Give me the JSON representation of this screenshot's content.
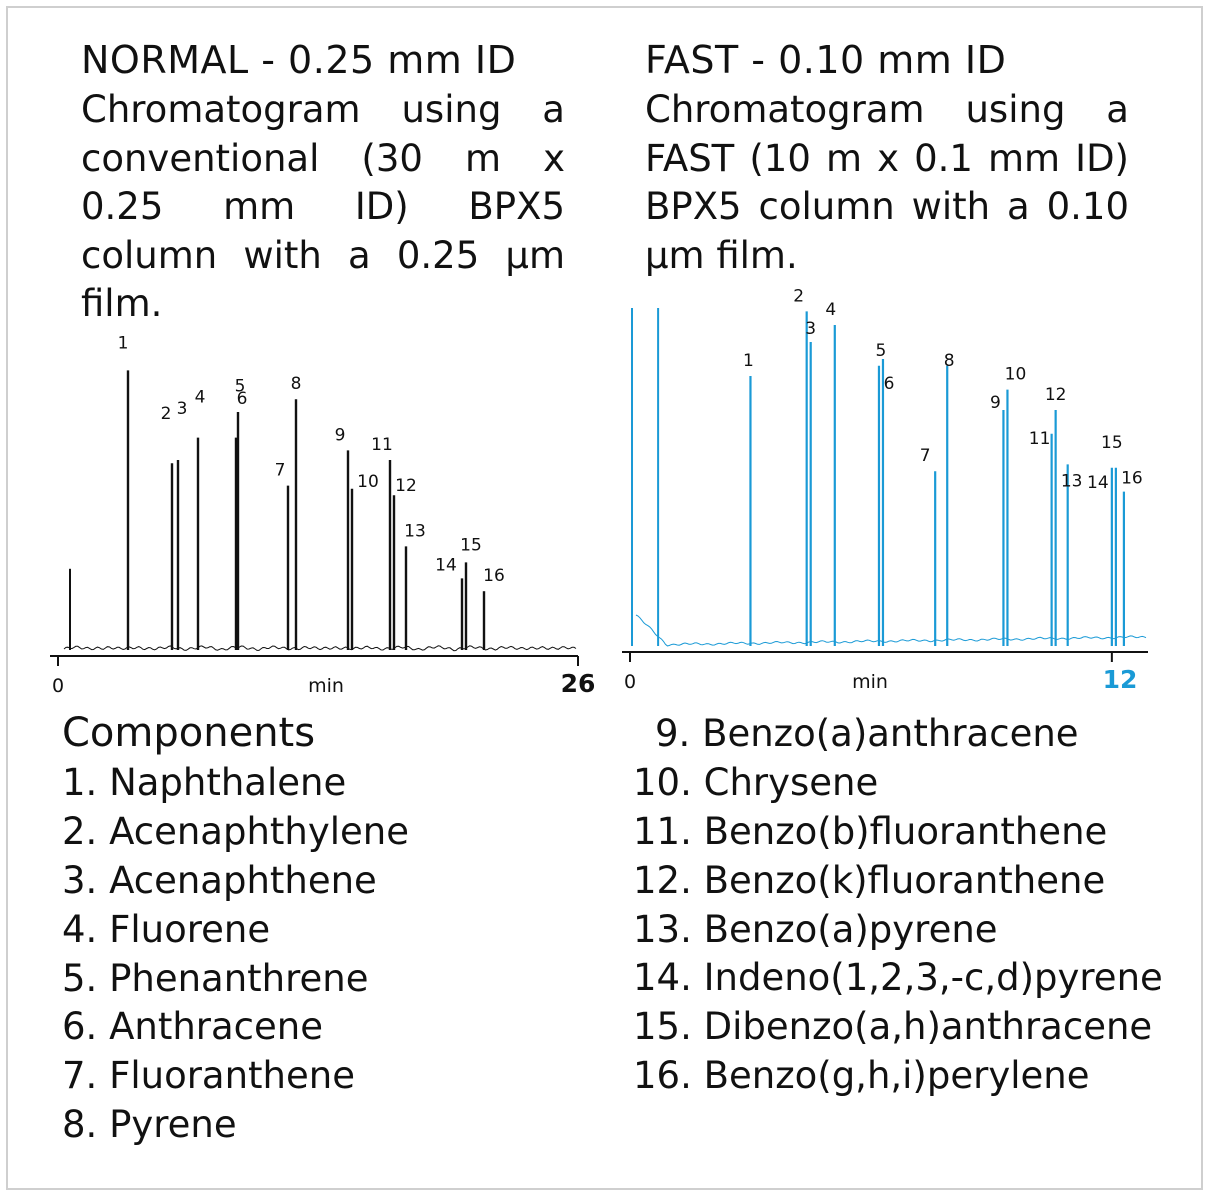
{
  "panels": {
    "normal": {
      "title": "NORMAL - 0.25 mm ID",
      "description": "Chromatogram using a conventional (30 m x 0.25 mm ID) BPX5 column with a 0.25 μm film."
    },
    "fast": {
      "title": "FAST - 0.10 mm ID",
      "description": "Chromatogram using a FAST (10 m x 0.1 mm ID) BPX5 column with a 0.10 μm film."
    }
  },
  "colors": {
    "normal_trace": "#111111",
    "fast_trace": "#1a9ad6",
    "fast_axis_end": "#1a9ad6"
  },
  "chart_data": [
    {
      "type": "line",
      "title": "NORMAL - 0.25 mm ID",
      "xlabel": "min",
      "ylabel": "",
      "xlim": [
        0,
        26
      ],
      "x_tick_labels": [
        "0",
        "26"
      ],
      "ylim": [
        0,
        100
      ],
      "grid": false,
      "peaks": [
        {
          "label": "1",
          "x": 3.5,
          "height": 88
        },
        {
          "label": "2",
          "x": 5.7,
          "height": 59
        },
        {
          "label": "3",
          "x": 6.0,
          "height": 60
        },
        {
          "label": "4",
          "x": 7.0,
          "height": 67
        },
        {
          "label": "5",
          "x": 8.9,
          "height": 67
        },
        {
          "label": "6",
          "x": 9.0,
          "height": 75
        },
        {
          "label": "7",
          "x": 11.5,
          "height": 52
        },
        {
          "label": "8",
          "x": 11.9,
          "height": 79
        },
        {
          "label": "9",
          "x": 14.5,
          "height": 63
        },
        {
          "label": "10",
          "x": 14.7,
          "height": 51
        },
        {
          "label": "11",
          "x": 16.6,
          "height": 60
        },
        {
          "label": "12",
          "x": 16.8,
          "height": 49
        },
        {
          "label": "13",
          "x": 17.4,
          "height": 33
        },
        {
          "label": "14",
          "x": 20.2,
          "height": 23
        },
        {
          "label": "15",
          "x": 20.4,
          "height": 28
        },
        {
          "label": "16",
          "x": 21.3,
          "height": 19
        }
      ],
      "minor_peaks": [
        {
          "x": 0.6,
          "height": 26
        },
        {
          "x": 3.5,
          "height": 35
        }
      ]
    },
    {
      "type": "line",
      "title": "FAST - 0.10 mm ID",
      "xlabel": "min",
      "ylabel": "",
      "xlim": [
        0,
        12.9
      ],
      "x_tick_labels": [
        "0",
        "12"
      ],
      "ylim": [
        0,
        100
      ],
      "grid": false,
      "peaks": [
        {
          "label": "1",
          "x": 3.0,
          "height": 80
        },
        {
          "label": "2",
          "x": 4.4,
          "height": 99
        },
        {
          "label": "3",
          "x": 4.5,
          "height": 90
        },
        {
          "label": "4",
          "x": 5.1,
          "height": 95
        },
        {
          "label": "5",
          "x": 6.2,
          "height": 83
        },
        {
          "label": "6",
          "x": 6.3,
          "height": 85
        },
        {
          "label": "7",
          "x": 7.6,
          "height": 52
        },
        {
          "label": "8",
          "x": 7.9,
          "height": 83
        },
        {
          "label": "9",
          "x": 9.3,
          "height": 70
        },
        {
          "label": "10",
          "x": 9.4,
          "height": 76
        },
        {
          "label": "11",
          "x": 10.5,
          "height": 63
        },
        {
          "label": "12",
          "x": 10.6,
          "height": 70
        },
        {
          "label": "13",
          "x": 10.9,
          "height": 54
        },
        {
          "label": "14",
          "x": 12.0,
          "height": 53
        },
        {
          "label": "15",
          "x": 12.1,
          "height": 53
        },
        {
          "label": "16",
          "x": 12.3,
          "height": 46
        }
      ],
      "solvent_peaks": [
        {
          "x": 0.05,
          "height": 100
        },
        {
          "x": 0.7,
          "height": 100
        }
      ]
    }
  ],
  "components": {
    "heading": "Components",
    "items": [
      "1. Naphthalene",
      "2. Acenaphthylene",
      "3. Acenaphthene",
      "4. Fluorene",
      "5. Phenanthrene",
      "6. Anthracene",
      "7. Fluoranthene",
      "8. Pyrene",
      "9. Benzo(a)anthracene",
      "10. Chrysene",
      "11. Benzo(b)fluoranthene",
      "12. Benzo(k)fluoranthene",
      "13. Benzo(a)pyrene",
      "14. Indeno(1,2,3,-c,d)pyrene",
      "15. Dibenzo(a,h)anthracene",
      "16. Benzo(g,h,i)perylene"
    ]
  }
}
